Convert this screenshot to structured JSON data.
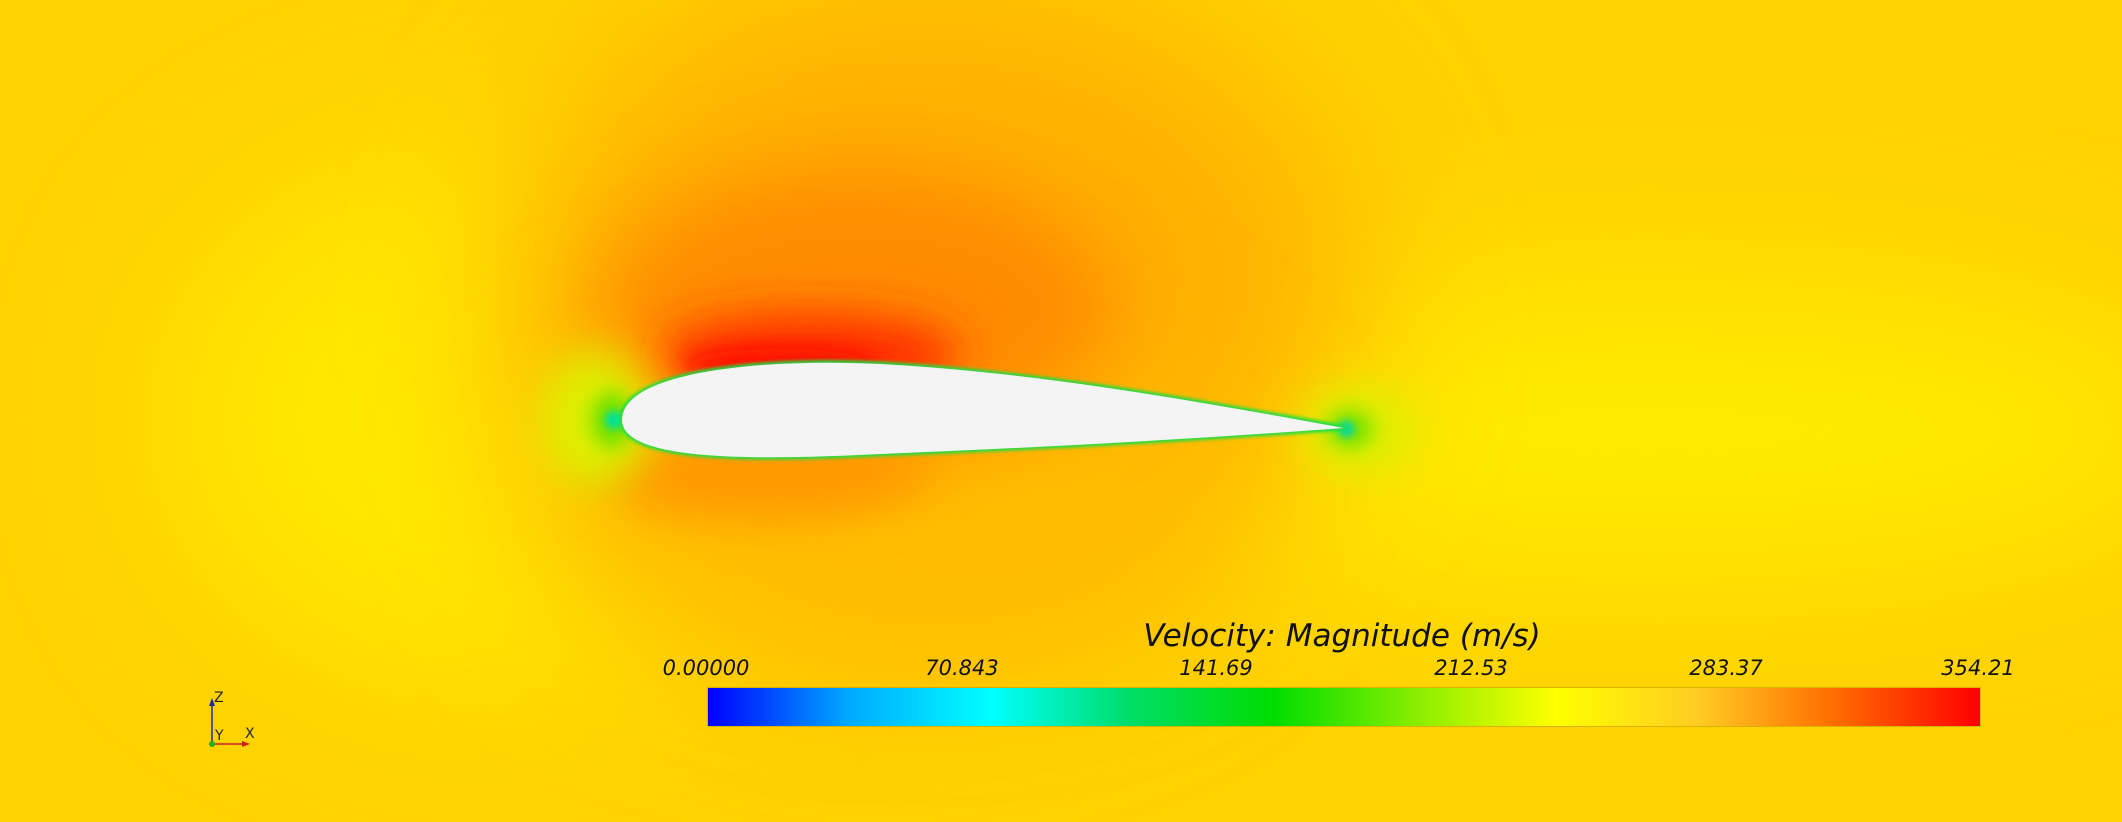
{
  "legend": {
    "title": "Velocity: Magnitude (m/s)",
    "min": 0,
    "max": 354.21,
    "ticks": [
      "0.00000",
      "70.843",
      "141.69",
      "212.53",
      "283.37",
      "354.21"
    ],
    "colormap": [
      "#0000ff",
      "#00aaff",
      "#00ffff",
      "#00dd66",
      "#00dd00",
      "#88ee00",
      "#ffff00",
      "#ffcc22",
      "#ff6a00",
      "#ff0000"
    ]
  },
  "triad": {
    "z": "Z",
    "y": "Y",
    "x": "X"
  },
  "colors": {
    "freestream": "#ffd200",
    "suction_peak": "#ff2a00",
    "stagnation": "#00e0a0",
    "airfoil": "#f4f4f4"
  }
}
